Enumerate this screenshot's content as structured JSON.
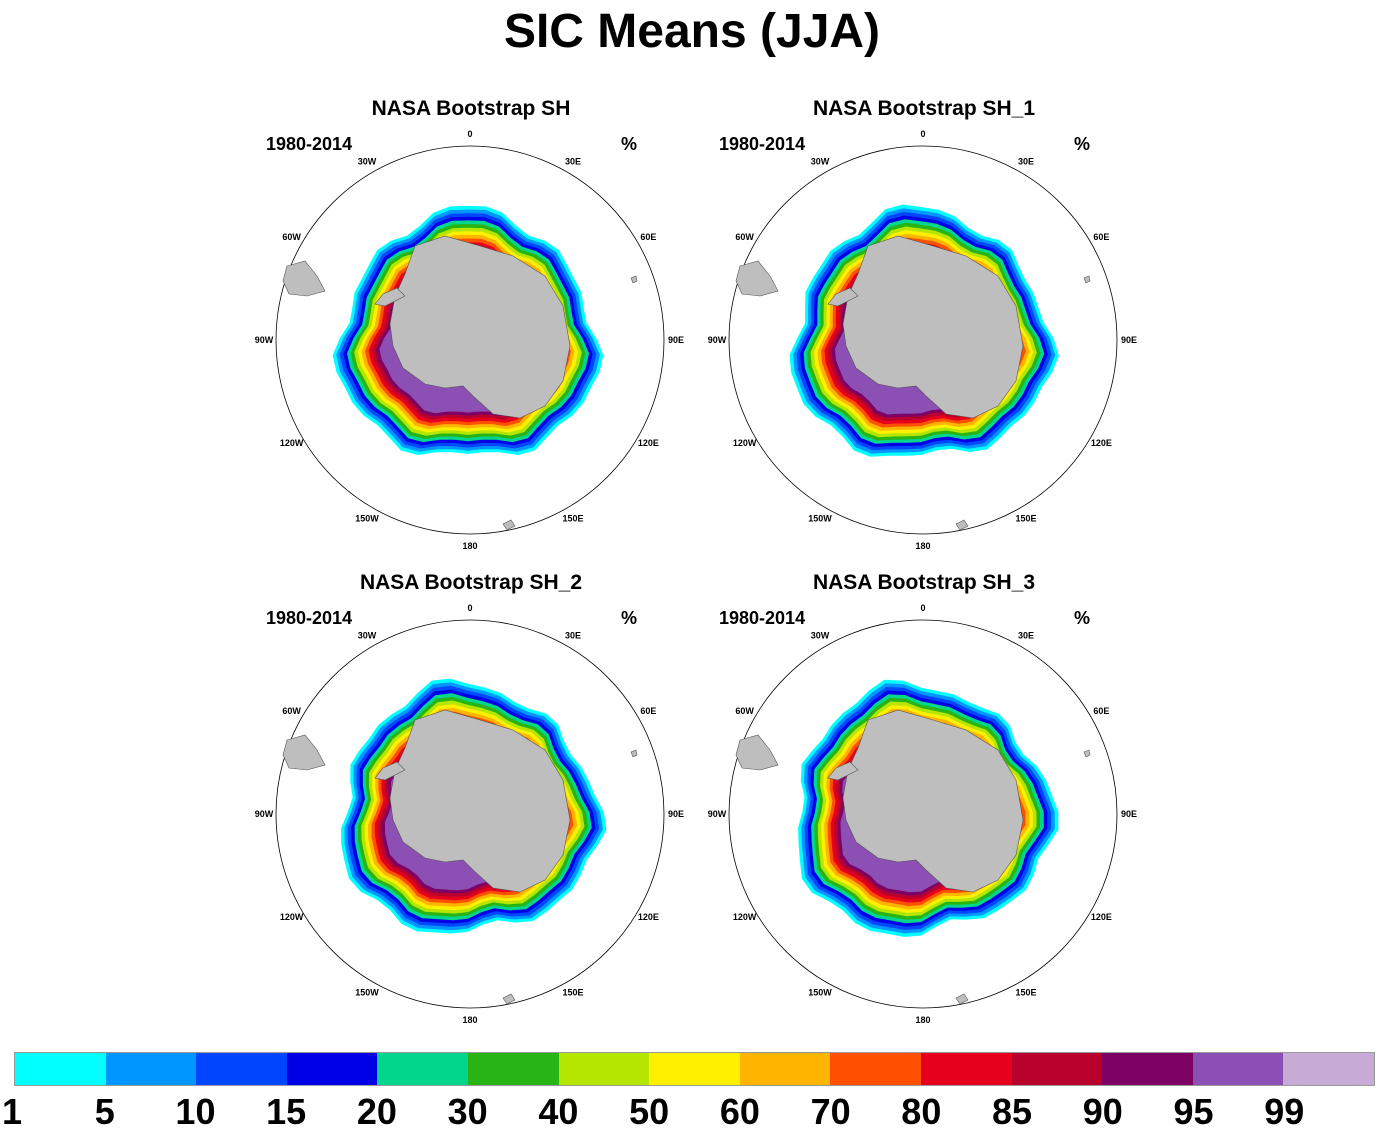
{
  "title": "SIC Means (JJA)",
  "panels": [
    {
      "title": "NASA Bootstrap SH",
      "period": "1980-2014",
      "units": "%"
    },
    {
      "title": "NASA Bootstrap SH_1",
      "period": "1980-2014",
      "units": "%"
    },
    {
      "title": "NASA Bootstrap SH_2",
      "period": "1980-2014",
      "units": "%"
    },
    {
      "title": "NASA Bootstrap SH_3",
      "period": "1980-2014",
      "units": "%"
    }
  ],
  "longitude_labels": [
    "0",
    "30E",
    "60E",
    "90E",
    "120E",
    "150E",
    "180",
    "150W",
    "120W",
    "90W",
    "60W",
    "30W"
  ],
  "colorbar": {
    "labels": [
      "1",
      "5",
      "10",
      "15",
      "20",
      "30",
      "40",
      "50",
      "60",
      "70",
      "80",
      "85",
      "90",
      "95",
      "99"
    ],
    "colors": [
      "#00ffff",
      "#0096ff",
      "#0046ff",
      "#0000e6",
      "#00d78c",
      "#28b414",
      "#b4e600",
      "#fff000",
      "#ffb400",
      "#ff5000",
      "#e6001e",
      "#b9002d",
      "#7d0064",
      "#8c50b4",
      "#c8aad7"
    ]
  },
  "land_color": "#bebebe"
}
